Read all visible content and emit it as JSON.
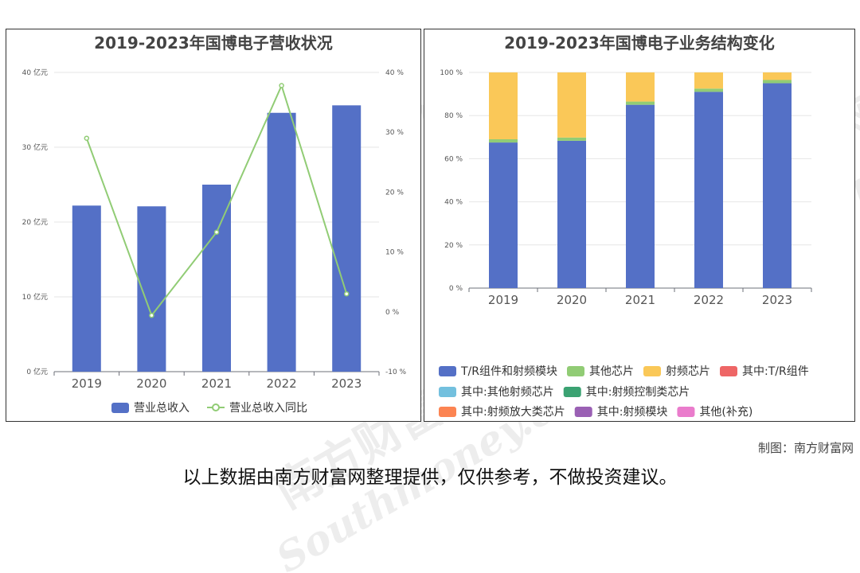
{
  "chart_data": [
    {
      "type": "bar+line",
      "title": "2019-2023年国博电子营收状况",
      "categories": [
        "2019",
        "2020",
        "2021",
        "2022",
        "2023"
      ],
      "y_left": {
        "ticks": [
          "0 亿元",
          "10 亿元",
          "20 亿元",
          "30 亿元",
          "40 亿元"
        ],
        "range": [
          0,
          40
        ]
      },
      "y_right": {
        "ticks": [
          "-10 %",
          "0 %",
          "10 %",
          "20 %",
          "30 %",
          "40 %"
        ],
        "range": [
          -10,
          40
        ]
      },
      "series": [
        {
          "name": "营业总收入",
          "kind": "bar",
          "axis": "left",
          "color": "#5470c6",
          "values": [
            22.2,
            22.1,
            25.0,
            34.6,
            35.6
          ]
        },
        {
          "name": "营业总收入同比",
          "kind": "line",
          "axis": "right",
          "color": "#91cc75",
          "values": [
            29.0,
            -0.6,
            13.3,
            37.8,
            3.0
          ]
        }
      ],
      "grid": true,
      "legend": "bottom"
    },
    {
      "type": "stacked-bar",
      "title": "2019-2023年国博电子业务结构变化",
      "categories": [
        "2019",
        "2020",
        "2021",
        "2022",
        "2023"
      ],
      "y": {
        "ticks": [
          "0 %",
          "20 %",
          "40 %",
          "60 %",
          "80 %",
          "100 %"
        ],
        "range": [
          0,
          100
        ]
      },
      "series": [
        {
          "name": "T/R组件和射频模块",
          "color": "#5470c6",
          "values": [
            67.5,
            68.3,
            85.0,
            91.0,
            95.0
          ]
        },
        {
          "name": "其他芯片",
          "color": "#91cc75",
          "values": [
            1.5,
            1.5,
            1.5,
            1.5,
            1.5
          ]
        },
        {
          "name": "射频芯片",
          "color": "#fac858",
          "values": [
            31.0,
            30.2,
            13.5,
            7.5,
            3.5
          ]
        },
        {
          "name": "其中:T/R组件",
          "color": "#ee6666",
          "values": [
            0,
            0,
            0,
            0,
            0
          ]
        },
        {
          "name": "其中:其他射频芯片",
          "color": "#73c0de",
          "values": [
            0,
            0,
            0,
            0,
            0
          ]
        },
        {
          "name": "其中:射频控制类芯片",
          "color": "#3ba272",
          "values": [
            0,
            0,
            0,
            0,
            0
          ]
        },
        {
          "name": "其中:射频放大类芯片",
          "color": "#fc8452",
          "values": [
            0,
            0,
            0,
            0,
            0
          ]
        },
        {
          "name": "其中:射频模块",
          "color": "#9a60b4",
          "values": [
            0,
            0,
            0,
            0,
            0
          ]
        },
        {
          "name": "其他(补充)",
          "color": "#ea7ccc",
          "values": [
            0,
            0,
            0,
            0,
            0
          ]
        }
      ],
      "grid": true,
      "legend": "bottom"
    }
  ],
  "credit": "制图：南方财富网",
  "disclaimer": "以上数据由南方财富网整理提供，仅供参考，不做投资建议。",
  "watermark": {
    "text_cn": "南方财富网",
    "text_en": "Southmoney.com"
  }
}
